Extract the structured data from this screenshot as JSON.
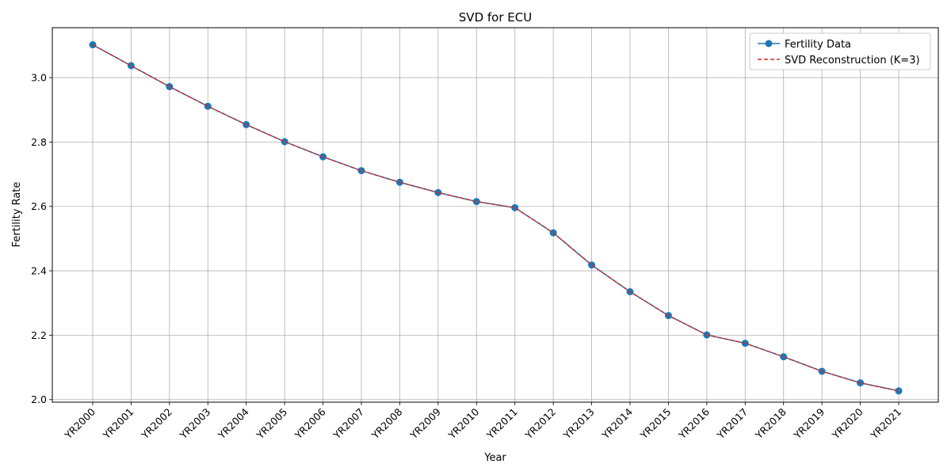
{
  "chart_data": {
    "type": "line",
    "title": "SVD for ECU",
    "xlabel": "Year",
    "ylabel": "Fertility Rate",
    "categories": [
      "YR2000",
      "YR2001",
      "YR2002",
      "YR2003",
      "YR2004",
      "YR2005",
      "YR2006",
      "YR2007",
      "YR2008",
      "YR2009",
      "YR2010",
      "YR2011",
      "YR2012",
      "YR2013",
      "YR2014",
      "YR2015",
      "YR2016",
      "YR2017",
      "YR2018",
      "YR2019",
      "YR2020",
      "YR2021"
    ],
    "ylim": [
      1.992,
      3.155
    ],
    "yticks": [
      2.0,
      2.2,
      2.4,
      2.6,
      2.8,
      3.0
    ],
    "ytick_labels": [
      "2.0",
      "2.2",
      "2.4",
      "2.6",
      "2.8",
      "3.0"
    ],
    "grid": true,
    "legend_position": "top-right",
    "series": [
      {
        "name": "Fertility Data",
        "color": "#1f77b4",
        "style": "solid-marker",
        "values": [
          3.102,
          3.037,
          2.972,
          2.911,
          2.854,
          2.801,
          2.754,
          2.711,
          2.675,
          2.643,
          2.615,
          2.596,
          2.518,
          2.418,
          2.335,
          2.261,
          2.201,
          2.175,
          2.133,
          2.088,
          2.052,
          2.027
        ]
      },
      {
        "name": "SVD Reconstruction (K=3)",
        "color": "#d62728",
        "style": "dashed",
        "values": [
          3.102,
          3.037,
          2.972,
          2.911,
          2.854,
          2.801,
          2.754,
          2.711,
          2.675,
          2.643,
          2.615,
          2.596,
          2.518,
          2.418,
          2.335,
          2.261,
          2.201,
          2.175,
          2.133,
          2.088,
          2.052,
          2.027
        ]
      }
    ]
  }
}
